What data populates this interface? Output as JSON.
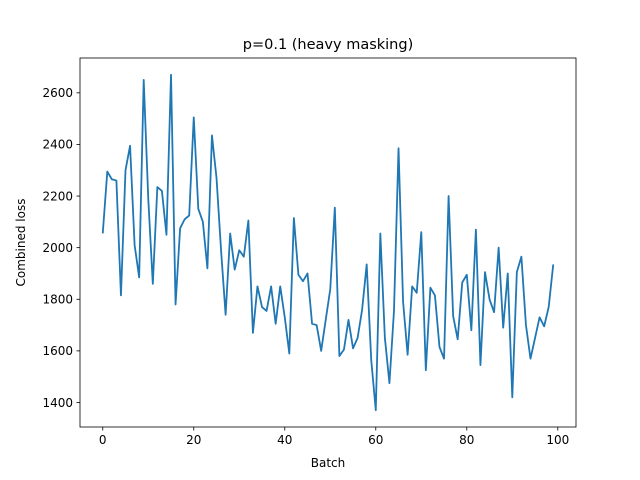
{
  "chart_data": {
    "type": "line",
    "title": "p=0.1 (heavy masking)",
    "xlabel": "Batch",
    "ylabel": "Combined loss",
    "xlim": [
      -5,
      104
    ],
    "ylim": [
      1305,
      2735
    ],
    "xticks": [
      0,
      20,
      40,
      60,
      80,
      100
    ],
    "yticks": [
      1400,
      1600,
      1800,
      2000,
      2200,
      2400,
      2600
    ],
    "grid": false,
    "line_color": "#1f77b4",
    "series": [
      {
        "x": [
          0,
          1,
          2,
          3,
          4,
          5,
          6,
          7,
          8,
          9,
          10,
          11,
          12,
          13,
          14,
          15,
          16,
          17,
          18,
          19,
          20,
          21,
          22,
          23,
          24,
          25,
          26,
          27,
          28,
          29,
          30,
          31,
          32,
          33,
          34,
          35,
          36,
          37,
          38,
          39,
          40,
          41,
          42,
          43,
          44,
          45,
          46,
          47,
          48,
          49,
          50,
          51,
          52,
          53,
          54,
          55,
          56,
          57,
          58,
          59,
          60,
          61,
          62,
          63,
          64,
          65,
          66,
          67,
          68,
          69,
          70,
          71,
          72,
          73,
          74,
          75,
          76,
          77,
          78,
          79,
          80,
          81,
          82,
          83,
          84,
          85,
          86,
          87,
          88,
          89,
          90,
          91,
          92,
          93,
          94,
          95,
          96,
          97,
          98,
          99
        ],
        "values": [
          2055,
          2295,
          2265,
          2260,
          1815,
          2300,
          2395,
          2010,
          1885,
          2650,
          2190,
          1860,
          2235,
          2220,
          2050,
          2670,
          1780,
          2075,
          2110,
          2125,
          2505,
          2150,
          2100,
          1920,
          2435,
          2270,
          1990,
          1740,
          2055,
          1915,
          1990,
          1965,
          2105,
          1670,
          1850,
          1770,
          1755,
          1850,
          1705,
          1850,
          1730,
          1590,
          2115,
          1895,
          1870,
          1900,
          1705,
          1700,
          1600,
          1720,
          1840,
          2155,
          1580,
          1605,
          1720,
          1610,
          1650,
          1760,
          1935,
          1565,
          1370,
          2055,
          1650,
          1475,
          1755,
          2385,
          1790,
          1585,
          1850,
          1825,
          2060,
          1525,
          1845,
          1815,
          1615,
          1570,
          2200,
          1735,
          1645,
          1865,
          1895,
          1680,
          2070,
          1545,
          1905,
          1800,
          1750,
          2000,
          1690,
          1900,
          1420,
          1905,
          1965,
          1700,
          1570,
          1650,
          1730,
          1695,
          1770,
          1935
        ]
      }
    ]
  }
}
